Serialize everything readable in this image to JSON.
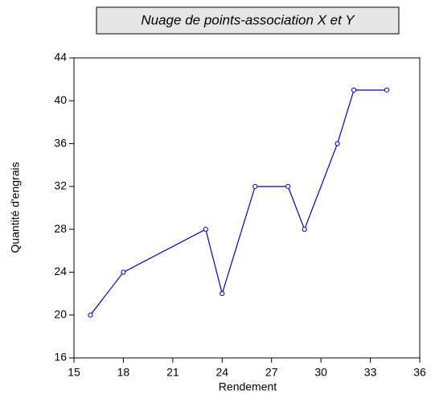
{
  "chart_data": {
    "type": "line",
    "title": "Nuage de points-association X et Y",
    "xlabel": "Rendement",
    "ylabel": "Quantité d'engrais",
    "x": [
      16,
      18,
      23,
      24,
      26,
      28,
      29,
      31,
      32,
      34
    ],
    "series": [
      {
        "name": "Quantité d'engrais",
        "color": "#0000cc",
        "values": [
          20,
          24,
          28,
          22,
          32,
          32,
          28,
          36,
          41,
          41
        ]
      }
    ],
    "markers": true,
    "xlim": [
      15,
      36
    ],
    "xticks": [
      15,
      18,
      21,
      24,
      27,
      30,
      33,
      36
    ],
    "ylim": [
      16,
      44
    ],
    "yticks": [
      16,
      20,
      24,
      28,
      32,
      36,
      40,
      44
    ],
    "grid": false
  }
}
